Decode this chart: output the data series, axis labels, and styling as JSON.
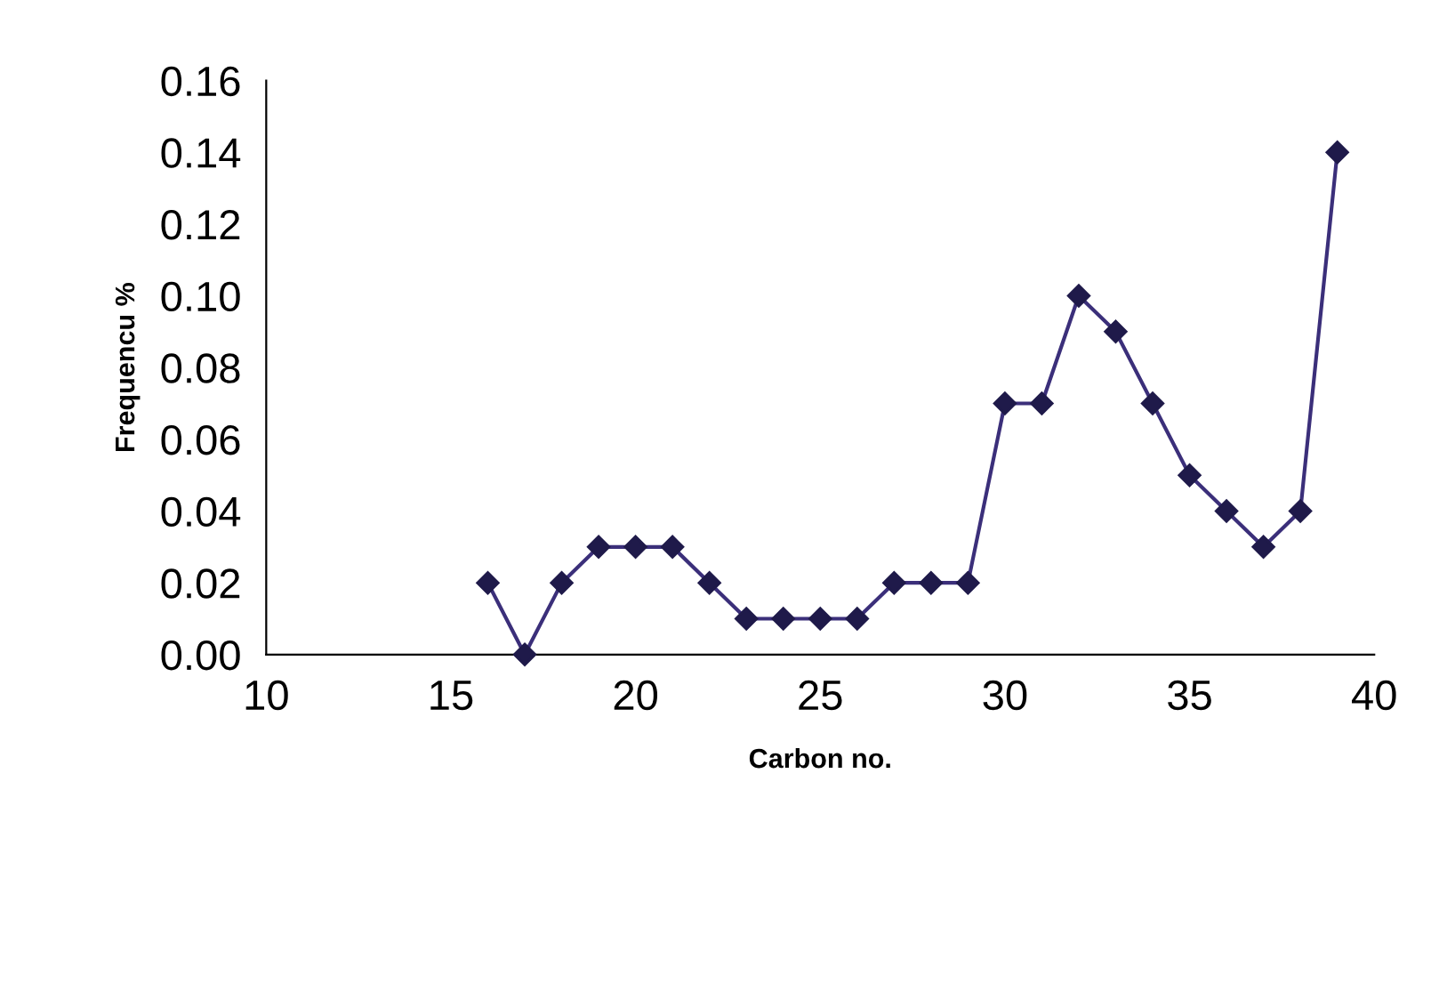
{
  "chart_data": {
    "type": "line",
    "xlabel": "Carbon no.",
    "ylabel": "Frequencu %",
    "x": [
      16,
      17,
      18,
      19,
      20,
      21,
      22,
      23,
      24,
      25,
      26,
      27,
      28,
      29,
      30,
      31,
      32,
      33,
      34,
      35,
      36,
      37,
      38,
      39
    ],
    "series": [
      {
        "color": "#3b2f7a",
        "values": [
          0.02,
          0.0,
          0.02,
          0.03,
          0.03,
          0.03,
          0.02,
          0.01,
          0.01,
          0.01,
          0.01,
          0.02,
          0.02,
          0.02,
          0.07,
          0.07,
          0.1,
          0.09,
          0.07,
          0.05,
          0.04,
          0.03,
          0.04,
          0.14
        ]
      }
    ],
    "xlim": [
      10,
      40
    ],
    "xticks": [
      10,
      15,
      20,
      25,
      30,
      35,
      40
    ],
    "ylim": [
      0,
      0.16
    ],
    "yticks": [
      {
        "value": 0,
        "label": "0.00"
      },
      {
        "value": 0.02,
        "label": "0.02"
      },
      {
        "value": 0.04,
        "label": "0.04"
      },
      {
        "value": 0.06,
        "label": "0.06"
      },
      {
        "value": 0.08,
        "label": "0.08"
      },
      {
        "value": 0.1,
        "label": "0.10"
      },
      {
        "value": 0.12,
        "label": "0.12"
      },
      {
        "value": 0.14,
        "label": "0.14"
      },
      {
        "value": 0.16,
        "label": "0.16"
      }
    ],
    "marker": "diamond",
    "line_style": "solid",
    "grid": false,
    "legend": false
  }
}
